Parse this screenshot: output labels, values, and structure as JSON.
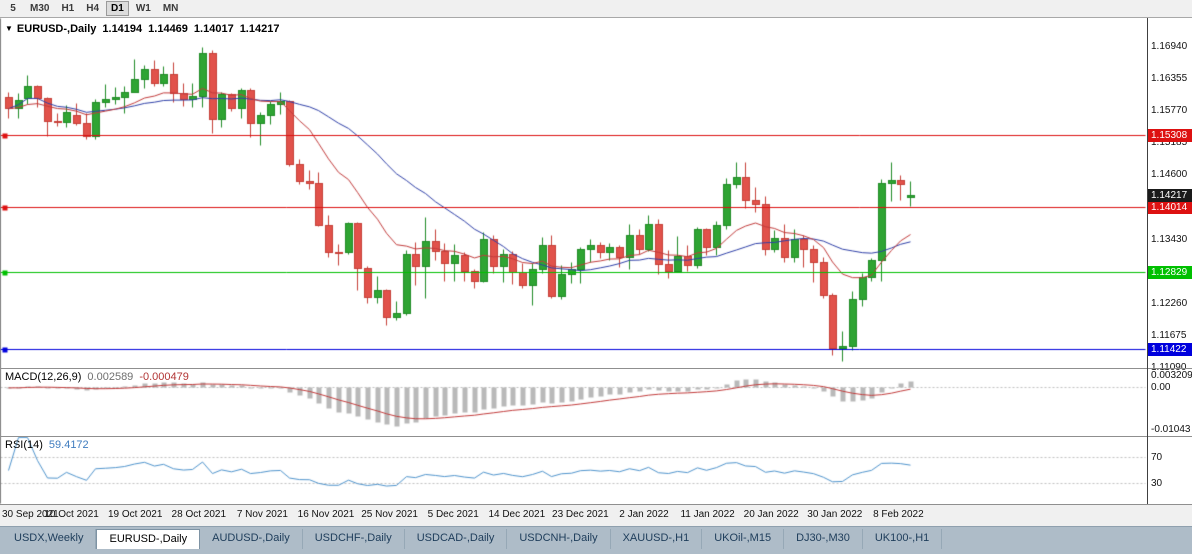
{
  "toolbar": {
    "timeframes": [
      {
        "label": "5",
        "active": false
      },
      {
        "label": "M30",
        "active": false
      },
      {
        "label": "H1",
        "active": false
      },
      {
        "label": "H4",
        "active": false
      },
      {
        "label": "D1",
        "active": true
      },
      {
        "label": "W1",
        "active": false
      },
      {
        "label": "MN",
        "active": false
      }
    ]
  },
  "chart": {
    "dropdown_icon": "▼",
    "symbol_label": "EURUSD-,Daily",
    "ohlc": {
      "open": "1.14194",
      "high": "1.14469",
      "low": "1.14017",
      "close": "1.14217"
    },
    "ylim": [
      1.1108,
      1.1744
    ],
    "price_axis": {
      "ticks": [
        "1.16940",
        "1.16355",
        "1.15770",
        "1.15185",
        "1.14600",
        "1.14015",
        "1.13430",
        "1.12845",
        "1.12260",
        "1.11675",
        "1.11090"
      ]
    },
    "date_axis": [
      "30 Sep 2021",
      "10 Oct 2021",
      "19 Oct 2021",
      "28 Oct 2021",
      "7 Nov 2021",
      "16 Nov 2021",
      "25 Nov 2021",
      "5 Dec 2021",
      "14 Dec 2021",
      "23 Dec 2021",
      "2 Jan 2022",
      "11 Jan 2022",
      "20 Jan 2022",
      "30 Jan 2022",
      "8 Feb 2022"
    ],
    "colors": {
      "bull": "#2fa433",
      "bull_stroke": "#1f8c26",
      "bear": "#e1524b",
      "bear_stroke": "#c63f38",
      "ma_fast": "#c23b3b",
      "ma_slow": "#2e3fa8",
      "macd_hist": "#b9b9b9",
      "macd_signal": "#c23b3b",
      "rsi_line": "#4f94cd",
      "dash": "#c0c0c0",
      "border": "#808080"
    }
  },
  "chart_data": {
    "type": "candlestick",
    "symbol": "EURUSD-",
    "timeframe": "Daily",
    "ylim": [
      1.1108,
      1.1744
    ],
    "overlays": {
      "ma_fast_period": 13,
      "ma_slow_period": 24
    },
    "hlines": [
      {
        "price": 1.15308,
        "label": "1.15308",
        "color": "#dd1111"
      },
      {
        "price": 1.14014,
        "label": "1.14014",
        "color": "#dd1111"
      },
      {
        "price": 1.12829,
        "label": "1.12829",
        "color": "#00c000"
      },
      {
        "price": 1.11422,
        "label": "1.11422",
        "color": "#0000dd"
      }
    ],
    "last_price": {
      "price": 1.14217,
      "label": "1.14217",
      "color": "#1a1a1a"
    },
    "candles": [
      [
        1.16,
        1.161,
        1.1563,
        1.158
      ],
      [
        1.158,
        1.1608,
        1.1563,
        1.1595
      ],
      [
        1.1598,
        1.164,
        1.1587,
        1.1621
      ],
      [
        1.1621,
        1.1622,
        1.1582,
        1.1599
      ],
      [
        1.1599,
        1.16,
        1.1529,
        1.1556
      ],
      [
        1.1556,
        1.1572,
        1.1548,
        1.1555
      ],
      [
        1.1555,
        1.1586,
        1.1546,
        1.1573
      ],
      [
        1.1567,
        1.1589,
        1.1549,
        1.1553
      ],
      [
        1.1553,
        1.1572,
        1.1524,
        1.153
      ],
      [
        1.153,
        1.1597,
        1.1525,
        1.1592
      ],
      [
        1.1592,
        1.1624,
        1.1582,
        1.1596
      ],
      [
        1.1596,
        1.1618,
        1.1588,
        1.1601
      ],
      [
        1.1601,
        1.1621,
        1.1572,
        1.161
      ],
      [
        1.161,
        1.167,
        1.1609,
        1.1633
      ],
      [
        1.1633,
        1.1658,
        1.1617,
        1.1652
      ],
      [
        1.1652,
        1.1667,
        1.162,
        1.1625
      ],
      [
        1.1625,
        1.1656,
        1.1621,
        1.1643
      ],
      [
        1.1643,
        1.1664,
        1.1591,
        1.1608
      ],
      [
        1.1608,
        1.1626,
        1.1585,
        1.1597
      ],
      [
        1.1597,
        1.1626,
        1.1583,
        1.1602
      ],
      [
        1.1602,
        1.1692,
        1.1582,
        1.1681
      ],
      [
        1.1681,
        1.1686,
        1.1535,
        1.156
      ],
      [
        1.156,
        1.1609,
        1.1546,
        1.1606
      ],
      [
        1.1606,
        1.1608,
        1.1575,
        1.158
      ],
      [
        1.158,
        1.1616,
        1.1562,
        1.1614
      ],
      [
        1.1614,
        1.1616,
        1.1527,
        1.1554
      ],
      [
        1.1554,
        1.1573,
        1.1513,
        1.1567
      ],
      [
        1.1567,
        1.1593,
        1.1551,
        1.1588
      ],
      [
        1.1588,
        1.1609,
        1.157,
        1.1593
      ],
      [
        1.1593,
        1.1595,
        1.1475,
        1.1478
      ],
      [
        1.1478,
        1.1487,
        1.1443,
        1.1448
      ],
      [
        1.1448,
        1.1468,
        1.1433,
        1.1445
      ],
      [
        1.1445,
        1.1464,
        1.1366,
        1.1368
      ],
      [
        1.1368,
        1.1386,
        1.1309,
        1.1319
      ],
      [
        1.1319,
        1.1333,
        1.1295,
        1.1318
      ],
      [
        1.1318,
        1.1374,
        1.1315,
        1.1372
      ],
      [
        1.1372,
        1.1374,
        1.125,
        1.1289
      ],
      [
        1.1289,
        1.1294,
        1.1226,
        1.1237
      ],
      [
        1.1237,
        1.1275,
        1.1226,
        1.125
      ],
      [
        1.125,
        1.1252,
        1.1186,
        1.1201
      ],
      [
        1.1201,
        1.123,
        1.1196,
        1.1208
      ],
      [
        1.1208,
        1.1323,
        1.1205,
        1.1315
      ],
      [
        1.1315,
        1.1337,
        1.1258,
        1.1294
      ],
      [
        1.1294,
        1.1383,
        1.1235,
        1.1339
      ],
      [
        1.1339,
        1.136,
        1.1305,
        1.132
      ],
      [
        1.132,
        1.1335,
        1.1266,
        1.1299
      ],
      [
        1.1299,
        1.1334,
        1.1267,
        1.1313
      ],
      [
        1.1313,
        1.1318,
        1.1267,
        1.1285
      ],
      [
        1.1285,
        1.1288,
        1.1253,
        1.1267
      ],
      [
        1.1267,
        1.1355,
        1.1265,
        1.1343
      ],
      [
        1.1343,
        1.1349,
        1.128,
        1.1294
      ],
      [
        1.1294,
        1.1324,
        1.1264,
        1.1316
      ],
      [
        1.1316,
        1.132,
        1.126,
        1.1283
      ],
      [
        1.1283,
        1.1298,
        1.1253,
        1.1259
      ],
      [
        1.1259,
        1.1298,
        1.1222,
        1.1287
      ],
      [
        1.1287,
        1.1346,
        1.128,
        1.1331
      ],
      [
        1.1331,
        1.135,
        1.1236,
        1.1239
      ],
      [
        1.1239,
        1.1296,
        1.1234,
        1.1279
      ],
      [
        1.1279,
        1.1301,
        1.1262,
        1.1287
      ],
      [
        1.1287,
        1.1328,
        1.1262,
        1.1324
      ],
      [
        1.1324,
        1.1342,
        1.1301,
        1.1332
      ],
      [
        1.1332,
        1.1337,
        1.1308,
        1.1318
      ],
      [
        1.1318,
        1.1336,
        1.1304,
        1.1327
      ],
      [
        1.1327,
        1.1332,
        1.1291,
        1.131
      ],
      [
        1.131,
        1.1369,
        1.1287,
        1.1349
      ],
      [
        1.1349,
        1.136,
        1.1316,
        1.1325
      ],
      [
        1.1325,
        1.1386,
        1.1321,
        1.137
      ],
      [
        1.137,
        1.1379,
        1.1279,
        1.1297
      ],
      [
        1.1297,
        1.1323,
        1.1272,
        1.1285
      ],
      [
        1.1285,
        1.1347,
        1.1284,
        1.1312
      ],
      [
        1.1312,
        1.1332,
        1.1285,
        1.1295
      ],
      [
        1.1295,
        1.1365,
        1.1289,
        1.136
      ],
      [
        1.136,
        1.1362,
        1.1313,
        1.1327
      ],
      [
        1.1327,
        1.1375,
        1.1314,
        1.1367
      ],
      [
        1.1367,
        1.1453,
        1.136,
        1.1443
      ],
      [
        1.1443,
        1.1482,
        1.1435,
        1.1455
      ],
      [
        1.1455,
        1.1483,
        1.1399,
        1.1414
      ],
      [
        1.1414,
        1.1436,
        1.1392,
        1.1406
      ],
      [
        1.1406,
        1.142,
        1.1314,
        1.1325
      ],
      [
        1.1325,
        1.1358,
        1.1318,
        1.1344
      ],
      [
        1.1344,
        1.137,
        1.1301,
        1.131
      ],
      [
        1.131,
        1.136,
        1.13,
        1.1343
      ],
      [
        1.1343,
        1.1349,
        1.1291,
        1.1325
      ],
      [
        1.1325,
        1.1332,
        1.1264,
        1.1301
      ],
      [
        1.1301,
        1.131,
        1.1235,
        1.124
      ],
      [
        1.124,
        1.1245,
        1.1131,
        1.1144
      ],
      [
        1.1144,
        1.1175,
        1.1121,
        1.1148
      ],
      [
        1.1148,
        1.1248,
        1.1141,
        1.1234
      ],
      [
        1.1234,
        1.128,
        1.122,
        1.1273
      ],
      [
        1.1273,
        1.1307,
        1.1266,
        1.1304
      ],
      [
        1.1304,
        1.1452,
        1.1266,
        1.1444
      ],
      [
        1.1444,
        1.1483,
        1.1411,
        1.145
      ],
      [
        1.145,
        1.1458,
        1.1414,
        1.1443
      ],
      [
        1.14194,
        1.14469,
        1.14017,
        1.14217
      ]
    ]
  },
  "macd": {
    "title": "MACD(12,26,9)",
    "value_main": "0.002589",
    "value_signal": "-0.000479",
    "params": {
      "fast": 12,
      "slow": 26,
      "signal": 9
    },
    "ylim": [
      -0.0119,
      0.0046
    ],
    "axis_labels": [
      {
        "text": "0.003209",
        "value": 0.003209
      },
      {
        "text": "0.00",
        "value": 0
      },
      {
        "text": "-0.01043",
        "value": -0.01043
      }
    ]
  },
  "rsi": {
    "title": "RSI(14)",
    "value": "59.4172",
    "period": 14,
    "levels": [
      70,
      30
    ],
    "axis_labels": [
      {
        "text": "70",
        "value": 70
      },
      {
        "text": "30",
        "value": 30
      }
    ]
  },
  "tabs": {
    "items": [
      "USDX,Weekly",
      "EURUSD-,Daily",
      "AUDUSD-,Daily",
      "USDCHF-,Daily",
      "USDCAD-,Daily",
      "USDCNH-,Daily",
      "XAUUSD-,H1",
      "UKOil-,M15",
      "DJ30-,M30",
      "UK100-,H1"
    ],
    "active_index": 1
  }
}
